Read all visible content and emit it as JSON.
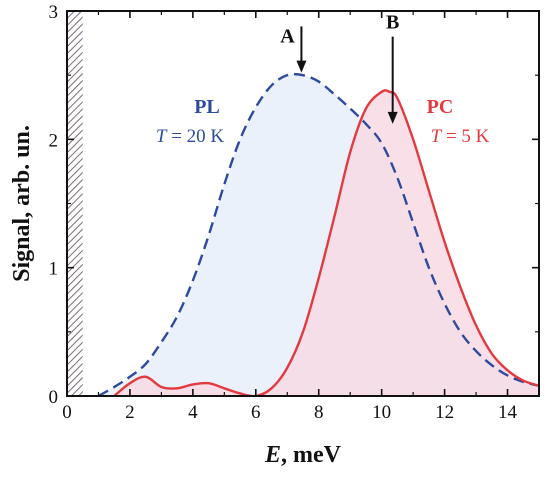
{
  "chart_data": {
    "type": "area",
    "x_label": {
      "var": "E",
      "unit": ", meV"
    },
    "y_label": "Signal, arb. un.",
    "xlim": [
      0,
      15
    ],
    "ylim": [
      0,
      3
    ],
    "x_ticks": [
      "0",
      "2",
      "4",
      "6",
      "8",
      "10",
      "12",
      "14"
    ],
    "y_ticks": [
      "0",
      "1",
      "2",
      "3"
    ],
    "grid": false,
    "hatched_region_x": [
      0,
      0.5
    ],
    "series": [
      {
        "name": "PL",
        "condition": {
          "var": "T",
          "rest": " = 20 K"
        },
        "line_style": "dashed",
        "line_color": "#2e4a9c",
        "fill_color": "#eaf1fb",
        "x": [
          1.0,
          1.5,
          2.0,
          2.5,
          3.0,
          3.5,
          4.0,
          4.5,
          5.0,
          5.5,
          6.0,
          6.5,
          7.0,
          7.5,
          8.0,
          8.5,
          9.0,
          9.5,
          10.0,
          10.5,
          11.0,
          11.5,
          12.0,
          12.5,
          13.0,
          13.5,
          14.0,
          14.5,
          15.0
        ],
        "y": [
          0.0,
          0.07,
          0.15,
          0.25,
          0.42,
          0.62,
          0.9,
          1.25,
          1.65,
          2.0,
          2.25,
          2.42,
          2.5,
          2.5,
          2.45,
          2.35,
          2.24,
          2.12,
          1.97,
          1.7,
          1.35,
          1.0,
          0.72,
          0.5,
          0.35,
          0.24,
          0.16,
          0.11,
          0.08
        ]
      },
      {
        "name": "PC",
        "condition": {
          "var": "T",
          "rest": " = 5 K"
        },
        "line_style": "solid",
        "line_color": "#e23a3f",
        "fill_color": "#f8dbe4",
        "x": [
          1.5,
          2.0,
          2.5,
          3.0,
          3.5,
          4.0,
          4.5,
          5.0,
          5.5,
          6.0,
          6.5,
          7.0,
          7.5,
          8.0,
          8.5,
          9.0,
          9.5,
          10.0,
          10.25,
          10.5,
          11.0,
          11.5,
          12.0,
          12.5,
          13.0,
          13.5,
          14.0,
          14.5,
          15.0
        ],
        "y": [
          0.0,
          0.1,
          0.15,
          0.07,
          0.06,
          0.09,
          0.1,
          0.06,
          0.02,
          0.0,
          0.06,
          0.22,
          0.5,
          0.92,
          1.4,
          1.9,
          2.24,
          2.37,
          2.37,
          2.32,
          2.0,
          1.6,
          1.2,
          0.85,
          0.55,
          0.33,
          0.2,
          0.12,
          0.08
        ]
      }
    ],
    "markers": [
      {
        "label": "A",
        "x": 7.45,
        "y_top": 2.88,
        "y_tip": 2.52
      },
      {
        "label": "B",
        "x": 10.35,
        "y_top": 2.8,
        "y_tip": 2.12
      }
    ]
  }
}
